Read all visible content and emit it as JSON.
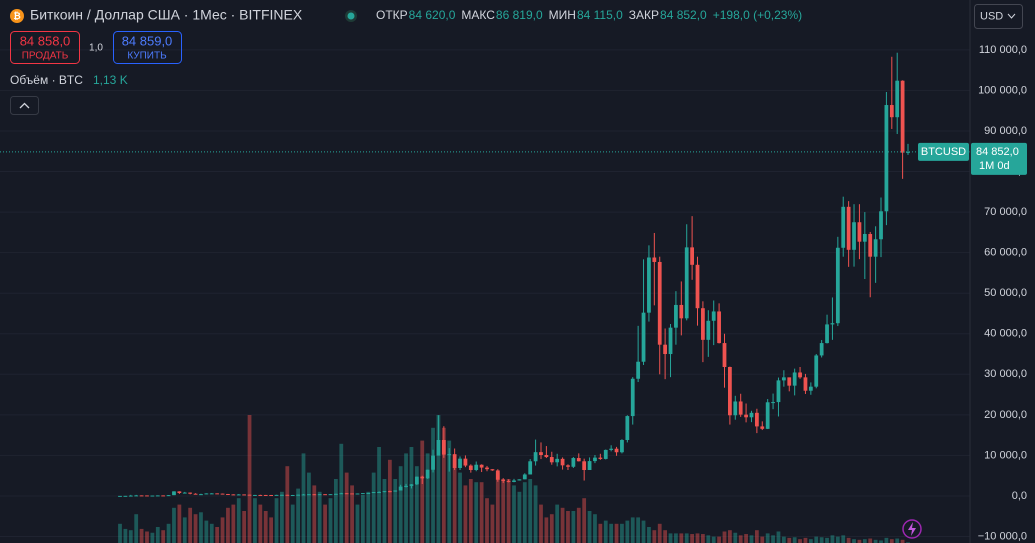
{
  "header": {
    "title": "Биткоин / Доллар США · 1Мес · BITFINEX",
    "ohlc": [
      {
        "label": "ОТКР",
        "value": "84 620,0"
      },
      {
        "label": "МАКС",
        "value": "86 819,0"
      },
      {
        "label": "МИН",
        "value": "84 115,0"
      },
      {
        "label": "ЗАКР",
        "value": "84 852,0"
      }
    ],
    "change": "+198,0 (+0,23%)"
  },
  "trade": {
    "sell_price": "84 858,0",
    "sell_label": "ПРОДАТЬ",
    "quantity": "1,0",
    "buy_price": "84 859,0",
    "buy_label": "КУПИТЬ"
  },
  "volume_legend": {
    "label": "Объём · BTC",
    "value": "1,13 K"
  },
  "currency": "USD",
  "chart_data": {
    "type": "candlestick",
    "up_color": "#26a69a",
    "down_color": "#ef5350",
    "grid": true,
    "ylim": [
      -11600,
      122300
    ],
    "yticks": [
      {
        "value": -10000,
        "label": "−10 000,0"
      },
      {
        "value": 0,
        "label": "0,0"
      },
      {
        "value": 10000,
        "label": "10 000,0"
      },
      {
        "value": 20000,
        "label": "20 000,0"
      },
      {
        "value": 30000,
        "label": "30 000,0"
      },
      {
        "value": 40000,
        "label": "40 000,0"
      },
      {
        "value": 50000,
        "label": "50 000,0"
      },
      {
        "value": 60000,
        "label": "60 000,0"
      },
      {
        "value": 70000,
        "label": "70 000,0"
      },
      {
        "value": 80000,
        "label": "80 000,0"
      },
      {
        "value": 90000,
        "label": "90 000,0"
      },
      {
        "value": 100000,
        "label": "100 000,0"
      },
      {
        "value": 110000,
        "label": "110 000,0"
      }
    ],
    "symbol": "BTCUSD",
    "last_price": {
      "value": 84852,
      "label": "84 852,0"
    },
    "countdown": "1M 0d",
    "open": [
      13,
      20,
      33,
      93,
      139,
      129,
      97,
      106,
      135,
      133,
      204,
      1130,
      730,
      830,
      550,
      450,
      450,
      630,
      640,
      580,
      480,
      390,
      340,
      380,
      320,
      220,
      250,
      245,
      235,
      230,
      265,
      285,
      230,
      235,
      315,
      380,
      430,
      370,
      440,
      415,
      450,
      530,
      670,
      625,
      575,
      610,
      700,
      745,
      965,
      970,
      1190,
      1080,
      1350,
      2300,
      2480,
      2870,
      4760,
      4340,
      6470,
      9950,
      13800,
      10200,
      10300,
      6900,
      9200,
      7500,
      6400,
      7700,
      7000,
      6600,
      6300,
      4000,
      3700,
      3450,
      3820,
      4100,
      5300,
      8550,
      10800,
      10100,
      9600,
      8300,
      9150,
      7550,
      7200,
      9350,
      8550,
      6400,
      8600,
      9450,
      9130,
      11350,
      11650,
      10780,
      13800,
      19700,
      28900,
      33100,
      45200,
      58800,
      57700,
      37300,
      35000,
      41500,
      47100,
      43800,
      61300,
      57000,
      46300,
      38500,
      43200,
      45500,
      37700,
      31800,
      19900,
      23300,
      20050,
      19400,
      20500,
      17150,
      16550,
      23100,
      23150,
      28500,
      29250,
      27200,
      30450,
      29250,
      25950,
      26950,
      34650,
      37700,
      42300,
      42600,
      61200,
      71300,
      60700,
      67500,
      62700,
      64600,
      59000,
      63300,
      70200,
      96400,
      93400,
      102400,
      84620
    ],
    "high": [
      22,
      35,
      266,
      266,
      140,
      130,
      110,
      140,
      145,
      215,
      1160,
      1150,
      1000,
      860,
      680,
      550,
      650,
      700,
      640,
      600,
      500,
      420,
      460,
      380,
      330,
      270,
      300,
      250,
      250,
      270,
      320,
      290,
      260,
      330,
      500,
      470,
      460,
      440,
      440,
      470,
      540,
      780,
      690,
      620,
      620,
      720,
      760,
      970,
      1150,
      1210,
      1300,
      1360,
      2760,
      2990,
      2930,
      4770,
      5000,
      6470,
      11400,
      19900,
      17200,
      11800,
      11700,
      9750,
      10000,
      7800,
      8500,
      7800,
      7400,
      6600,
      6600,
      4400,
      4100,
      4200,
      4100,
      5600,
      9100,
      13900,
      13200,
      12300,
      10900,
      10400,
      9500,
      7800,
      9600,
      10500,
      9200,
      9500,
      10100,
      10400,
      11450,
      12500,
      12100,
      14000,
      19900,
      29300,
      41950,
      58350,
      61800,
      64850,
      59000,
      41300,
      42400,
      50500,
      52900,
      67000,
      69000,
      59000,
      48000,
      45800,
      48200,
      47500,
      40000,
      31900,
      24700,
      25200,
      22800,
      21000,
      21500,
      18400,
      23900,
      25250,
      29200,
      31000,
      28450,
      31400,
      31800,
      30100,
      28000,
      35000,
      38450,
      44700,
      48950,
      63900,
      73800,
      72700,
      71950,
      71950,
      70000,
      65100,
      66500,
      73600,
      99600,
      108300,
      109300,
      102500,
      86819
    ],
    "low": [
      13,
      19,
      33,
      50,
      79,
      65,
      65,
      100,
      118,
      105,
      200,
      500,
      730,
      400,
      420,
      340,
      430,
      550,
      560,
      430,
      350,
      275,
      320,
      310,
      150,
      210,
      240,
      215,
      225,
      225,
      260,
      200,
      220,
      235,
      300,
      350,
      360,
      370,
      400,
      410,
      440,
      530,
      600,
      550,
      580,
      600,
      700,
      740,
      750,
      920,
      900,
      1080,
      1350,
      2100,
      1850,
      2700,
      2950,
      4200,
      5800,
      10900,
      9400,
      6000,
      6400,
      6400,
      7100,
      5750,
      6100,
      5900,
      6100,
      6200,
      3500,
      3200,
      3350,
      3370,
      3800,
      4100,
      5300,
      7500,
      9100,
      9350,
      7700,
      7300,
      6500,
      6400,
      6900,
      8500,
      3800,
      6500,
      8100,
      8900,
      9000,
      11000,
      9900,
      10500,
      13200,
      17600,
      28100,
      32300,
      43000,
      47000,
      30000,
      28800,
      29300,
      37300,
      39600,
      43300,
      53300,
      42000,
      33000,
      34300,
      37200,
      37600,
      26700,
      17600,
      18800,
      19500,
      18150,
      18200,
      15500,
      16250,
      16500,
      21400,
      19600,
      26950,
      25800,
      24800,
      28900,
      25150,
      24950,
      26550,
      34150,
      37600,
      38500,
      41900,
      59000,
      56500,
      56550,
      58400,
      53500,
      49000,
      52550,
      58900,
      66800,
      90500,
      89250,
      78200,
      84115
    ],
    "close": [
      20,
      33,
      93,
      139,
      129,
      97,
      106,
      135,
      133,
      204,
      1130,
      730,
      830,
      550,
      450,
      450,
      630,
      640,
      580,
      480,
      390,
      340,
      380,
      320,
      220,
      250,
      245,
      235,
      230,
      265,
      285,
      230,
      235,
      315,
      380,
      430,
      370,
      440,
      415,
      450,
      530,
      670,
      625,
      575,
      610,
      700,
      745,
      965,
      970,
      1190,
      1080,
      1350,
      2300,
      2480,
      2870,
      4760,
      4340,
      6470,
      9950,
      13800,
      10200,
      10300,
      6900,
      9200,
      7500,
      6400,
      7700,
      7000,
      6600,
      6300,
      4000,
      3700,
      3450,
      3820,
      4100,
      5300,
      8550,
      10800,
      10100,
      9600,
      8300,
      9150,
      7550,
      7200,
      9350,
      8550,
      6400,
      8600,
      9450,
      9130,
      11350,
      11650,
      10780,
      13800,
      19700,
      28900,
      33100,
      45200,
      58800,
      57700,
      37300,
      35000,
      41500,
      47100,
      43800,
      61300,
      57000,
      46300,
      38500,
      43200,
      45500,
      37700,
      31800,
      19900,
      23300,
      20050,
      19400,
      20500,
      17150,
      16550,
      23100,
      23150,
      28500,
      29250,
      27200,
      30450,
      29250,
      25950,
      26950,
      34650,
      37700,
      42300,
      42600,
      61200,
      71300,
      60700,
      67500,
      62700,
      64600,
      59000,
      63300,
      70200,
      96400,
      93400,
      102400,
      84654,
      84852
    ],
    "volume": [
      30000,
      22000,
      20000,
      45000,
      22000,
      18000,
      16000,
      25000,
      20000,
      30000,
      55000,
      60000,
      40000,
      55000,
      45000,
      48000,
      35000,
      30000,
      25000,
      40000,
      55000,
      60000,
      70000,
      50000,
      200000,
      70000,
      60000,
      50000,
      40000,
      70000,
      80000,
      120000,
      60000,
      85000,
      140000,
      110000,
      90000,
      80000,
      60000,
      70000,
      100000,
      155000,
      110000,
      90000,
      60000,
      75000,
      80000,
      110000,
      150000,
      100000,
      130000,
      100000,
      120000,
      140000,
      150000,
      120000,
      160000,
      140000,
      180000,
      200000,
      180000,
      160000,
      130000,
      110000,
      90000,
      100000,
      95000,
      95000,
      70000,
      60000,
      110000,
      100000,
      100000,
      90000,
      80000,
      95000,
      100000,
      90000,
      60000,
      40000,
      45000,
      60000,
      55000,
      50000,
      50000,
      55000,
      70000,
      50000,
      45000,
      30000,
      35000,
      30000,
      30000,
      30000,
      35000,
      40000,
      40000,
      35000,
      25000,
      20000,
      30000,
      20000,
      15000,
      15000,
      15000,
      15000,
      14000,
      15000,
      14000,
      12000,
      10000,
      10000,
      18000,
      20000,
      16000,
      12000,
      14000,
      12000,
      20000,
      10000,
      15000,
      12000,
      18000,
      10000,
      8000,
      9000,
      6000,
      8000,
      6000,
      10000,
      9000,
      8000,
      12000,
      10000,
      12000,
      8000,
      6000,
      5000,
      6000,
      7000,
      5000,
      4000,
      8000,
      6000,
      7000,
      5000,
      1130
    ]
  }
}
